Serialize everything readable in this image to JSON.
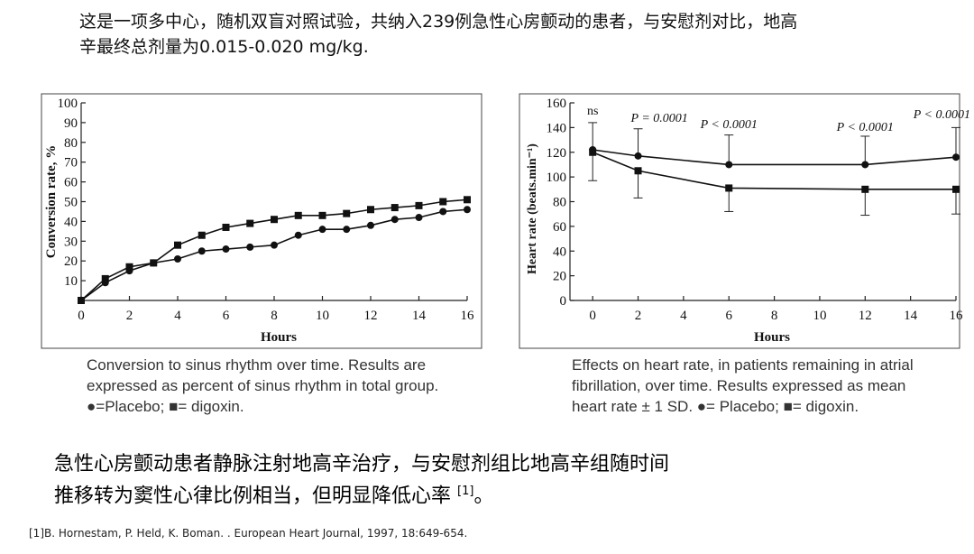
{
  "intro_text": "这是一项多中心，随机双盲对照试验，共纳入239例急性心房颤动的患者，与安慰剂对比，地高辛最终总剂量为0.015-0.020 mg/kg.",
  "chart_data": [
    {
      "type": "line",
      "xlabel": "Hours",
      "ylabel": "Conversion rate, %",
      "xlim": [
        0,
        16
      ],
      "ylim": [
        0,
        100
      ],
      "xticks": [
        0,
        2,
        4,
        6,
        8,
        10,
        12,
        14,
        16
      ],
      "yticks": [
        10,
        20,
        30,
        40,
        50,
        60,
        70,
        80,
        90,
        100
      ],
      "series": [
        {
          "name": "Placebo",
          "marker": "circle",
          "x": [
            0,
            1,
            2,
            3,
            4,
            5,
            6,
            7,
            8,
            9,
            10,
            11,
            12,
            13,
            14,
            15,
            16
          ],
          "y": [
            0,
            9,
            15,
            19,
            21,
            25,
            26,
            27,
            28,
            33,
            36,
            36,
            38,
            41,
            42,
            45,
            46
          ]
        },
        {
          "name": "digoxin",
          "marker": "square",
          "x": [
            0,
            1,
            2,
            3,
            4,
            5,
            6,
            7,
            8,
            9,
            10,
            11,
            12,
            13,
            14,
            15,
            16
          ],
          "y": [
            0,
            11,
            17,
            19,
            28,
            33,
            37,
            39,
            41,
            43,
            43,
            44,
            46,
            47,
            48,
            50,
            51
          ]
        }
      ],
      "caption_lines": [
        "Conversion to sinus rhythm over time. Results are",
        "expressed as percent of sinus rhythm in total group.",
        "●=Placebo; ■= digoxin."
      ]
    },
    {
      "type": "line",
      "xlabel": "Hours",
      "ylabel": "Heart rate (beats.min⁻¹)",
      "xlim": [
        -1,
        16
      ],
      "ylim": [
        0,
        160
      ],
      "xticks": [
        0,
        2,
        4,
        6,
        8,
        10,
        12,
        14,
        16
      ],
      "yticks": [
        0,
        20,
        40,
        60,
        80,
        100,
        120,
        140,
        160
      ],
      "series": [
        {
          "name": "Placebo",
          "marker": "circle",
          "x": [
            0,
            2,
            6,
            12,
            16
          ],
          "y": [
            122,
            117,
            110,
            110,
            116
          ],
          "err_up": [
            22,
            22,
            24,
            23,
            24
          ]
        },
        {
          "name": "digoxin",
          "marker": "square",
          "x": [
            0,
            2,
            6,
            12,
            16
          ],
          "y": [
            120,
            105,
            91,
            90,
            90
          ],
          "err_down": [
            23,
            22,
            19,
            21,
            20
          ]
        }
      ],
      "annotations": [
        {
          "x": 0,
          "text": "ns"
        },
        {
          "x": 2,
          "text": "P = 0.0001"
        },
        {
          "x": 6,
          "text": "P < 0.0001"
        },
        {
          "x": 12,
          "text": "P < 0.0001"
        },
        {
          "x": 16,
          "text": "P < 0.0001"
        }
      ],
      "caption_lines": [
        "Effects on heart rate, in patients remaining in atrial",
        "fibrillation, over time. Results expressed as mean",
        "heart rate ± 1 SD. ●= Placebo; ■= digoxin."
      ]
    }
  ],
  "conclusion": {
    "line1": "急性心房颤动患者静脉注射地高辛治疗，与安慰剂组比地高辛组随时间",
    "line2": "推移转为窦性心律比例相当，但明显降低心率",
    "cite": "[1]",
    "end": "。"
  },
  "reference": "[1]B. Hornestam, P. Held, K. Boman. . European Heart Journal, 1997, 18:649-654."
}
